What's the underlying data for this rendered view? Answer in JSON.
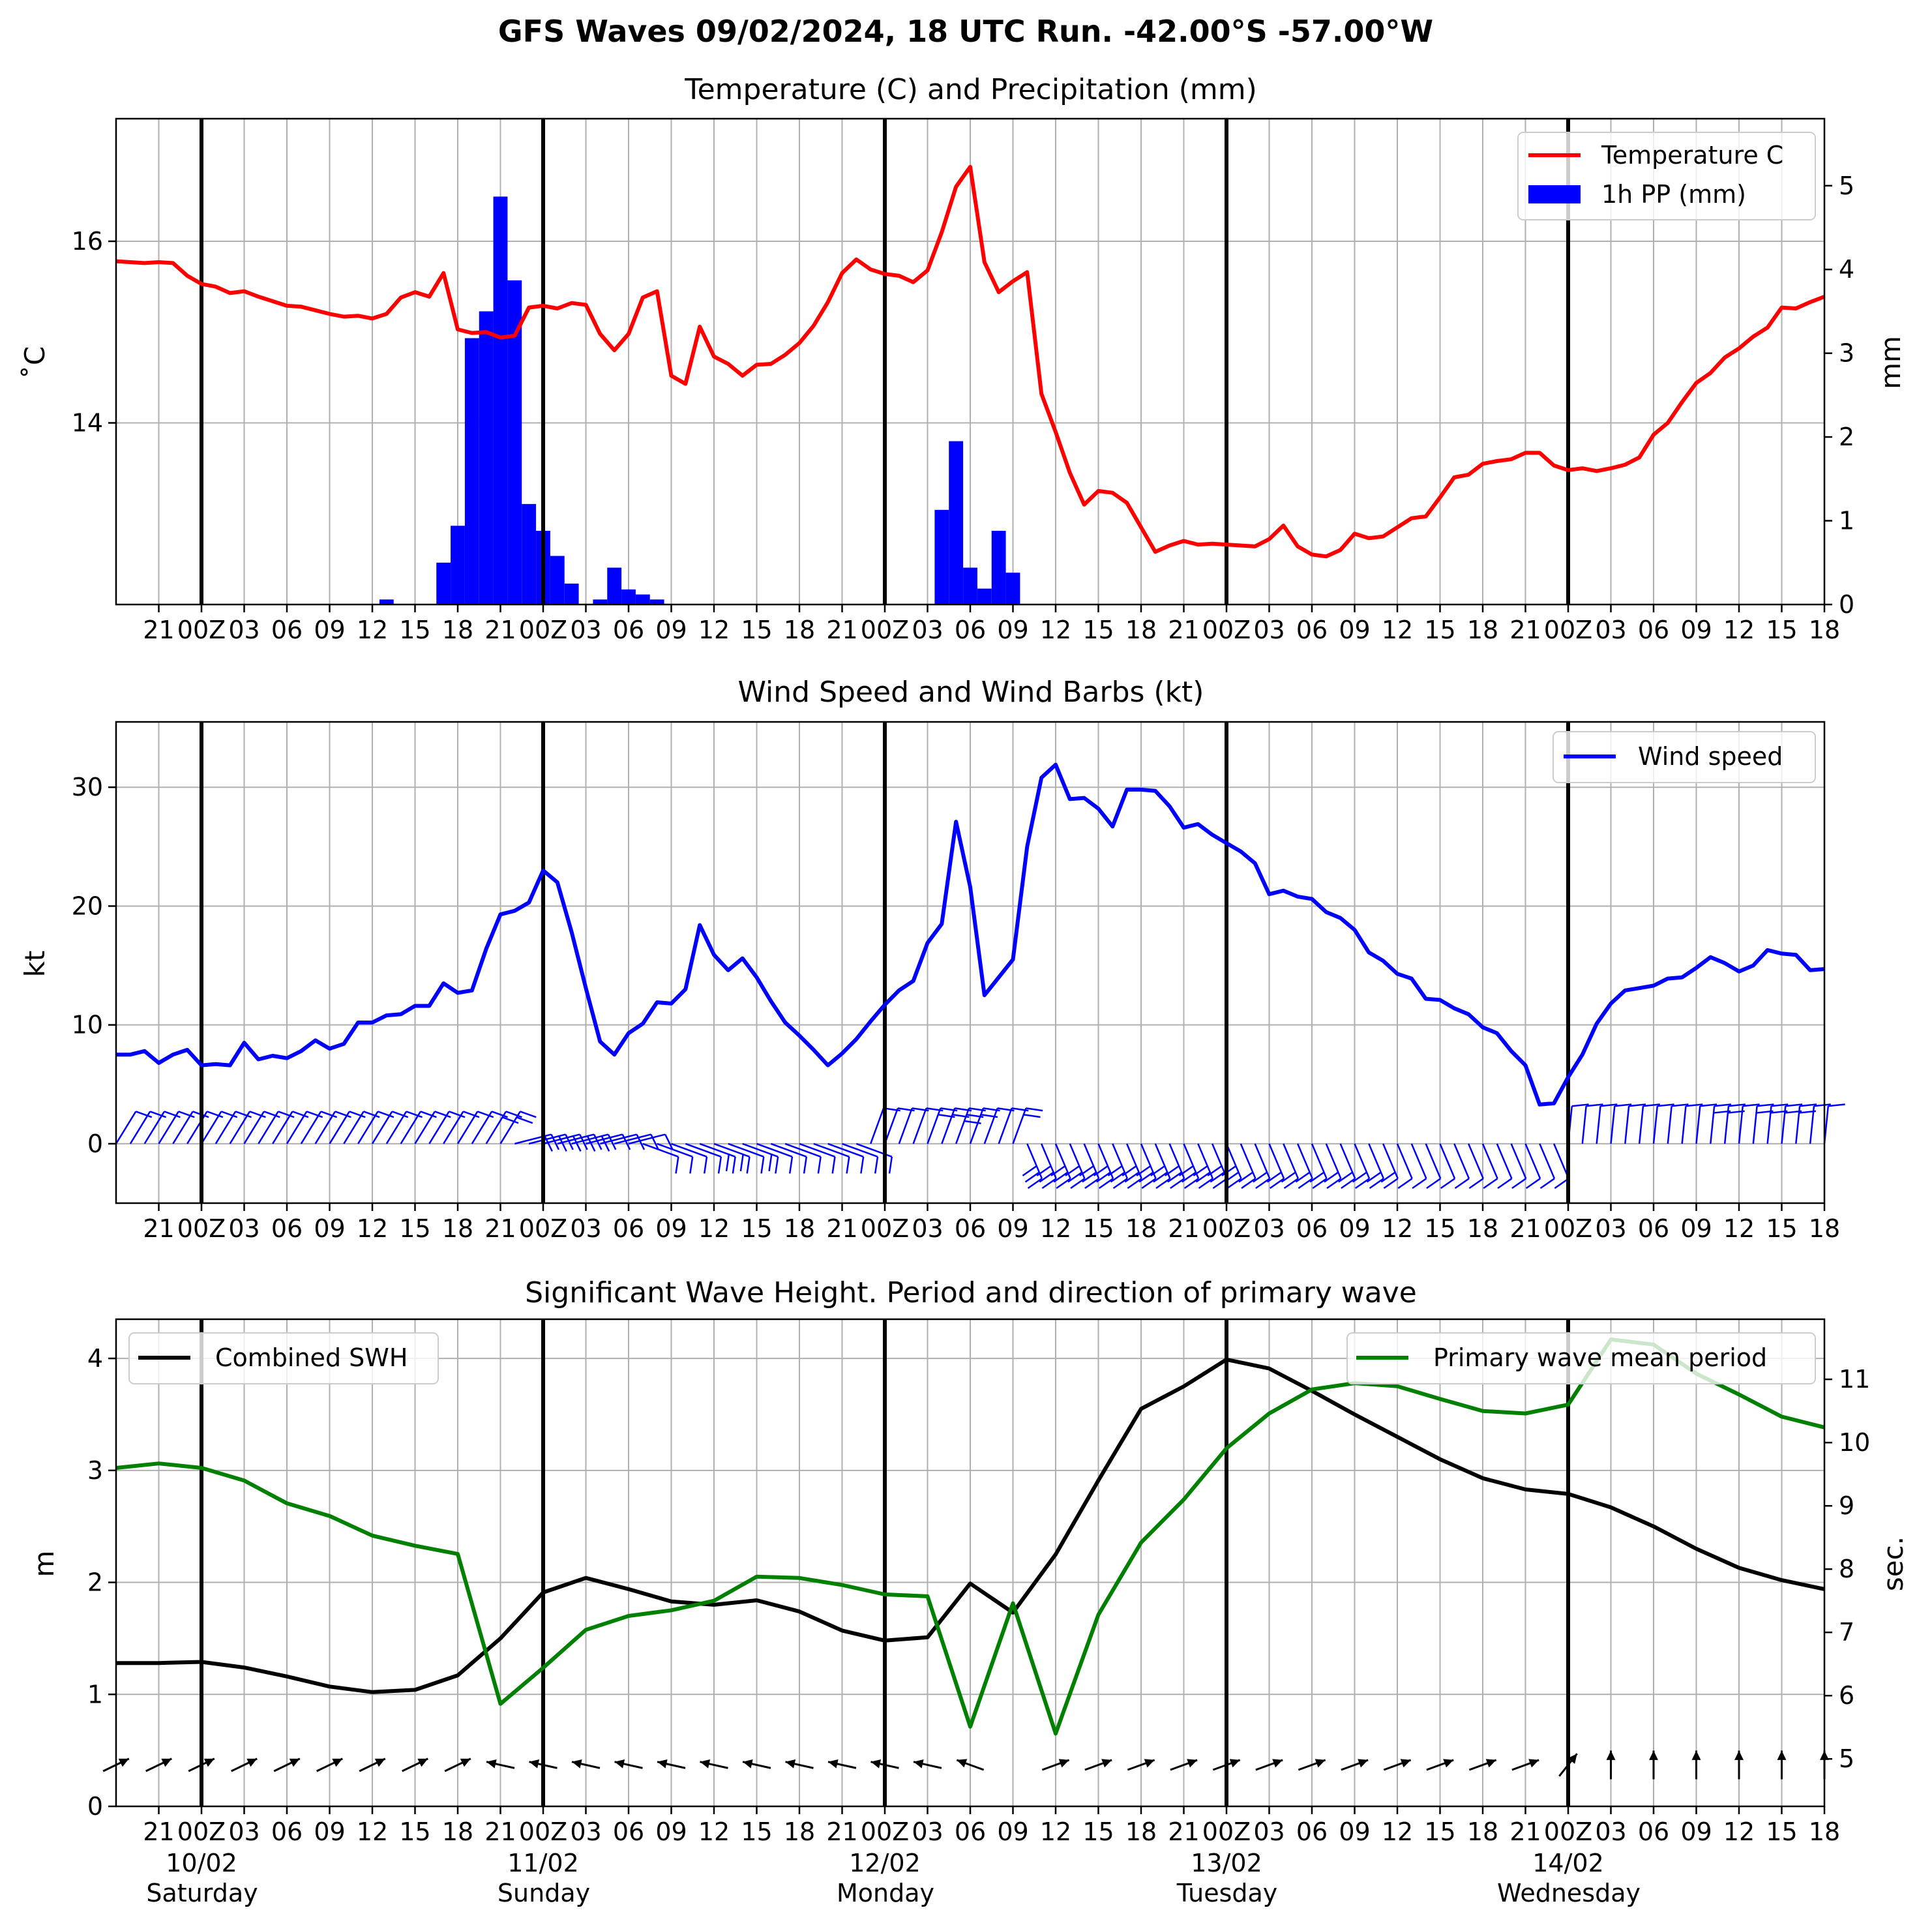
{
  "title": "GFS Waves 09/02/2024, 18 UTC Run. -42.00°S -57.00°W",
  "colors": {
    "temperature": "#ff0000",
    "precip": "#0000ff",
    "wind": "#0000ff",
    "swh": "#000000",
    "period": "#008000",
    "grid": "#b0b0b0"
  },
  "x_axis": {
    "range_hours": [
      0,
      120
    ],
    "ticks": [
      {
        "h": 3,
        "label": "21"
      },
      {
        "h": 6,
        "label": "00Z"
      },
      {
        "h": 9,
        "label": "03"
      },
      {
        "h": 12,
        "label": "06"
      },
      {
        "h": 15,
        "label": "09"
      },
      {
        "h": 18,
        "label": "12"
      },
      {
        "h": 21,
        "label": "15"
      },
      {
        "h": 24,
        "label": "18"
      },
      {
        "h": 27,
        "label": "21"
      },
      {
        "h": 30,
        "label": "00Z"
      },
      {
        "h": 33,
        "label": "03"
      },
      {
        "h": 36,
        "label": "06"
      },
      {
        "h": 39,
        "label": "09"
      },
      {
        "h": 42,
        "label": "12"
      },
      {
        "h": 45,
        "label": "15"
      },
      {
        "h": 48,
        "label": "18"
      },
      {
        "h": 51,
        "label": "21"
      },
      {
        "h": 54,
        "label": "00Z"
      },
      {
        "h": 57,
        "label": "03"
      },
      {
        "h": 60,
        "label": "06"
      },
      {
        "h": 63,
        "label": "09"
      },
      {
        "h": 66,
        "label": "12"
      },
      {
        "h": 69,
        "label": "15"
      },
      {
        "h": 72,
        "label": "18"
      },
      {
        "h": 75,
        "label": "21"
      },
      {
        "h": 78,
        "label": "00Z"
      },
      {
        "h": 81,
        "label": "03"
      },
      {
        "h": 84,
        "label": "06"
      },
      {
        "h": 87,
        "label": "09"
      },
      {
        "h": 90,
        "label": "12"
      },
      {
        "h": 93,
        "label": "15"
      },
      {
        "h": 96,
        "label": "18"
      },
      {
        "h": 99,
        "label": "21"
      },
      {
        "h": 102,
        "label": "00Z"
      },
      {
        "h": 105,
        "label": "03"
      },
      {
        "h": 108,
        "label": "06"
      },
      {
        "h": 111,
        "label": "09"
      },
      {
        "h": 114,
        "label": "12"
      },
      {
        "h": 117,
        "label": "15"
      },
      {
        "h": 120,
        "label": "18"
      }
    ],
    "day_lines": [
      6,
      30,
      54,
      78,
      102
    ],
    "days": [
      {
        "h": 6,
        "date": "10/02",
        "weekday": "Saturday"
      },
      {
        "h": 30,
        "date": "11/02",
        "weekday": "Sunday"
      },
      {
        "h": 54,
        "date": "12/02",
        "weekday": "Monday"
      },
      {
        "h": 78,
        "date": "13/02",
        "weekday": "Tuesday"
      },
      {
        "h": 102,
        "date": "14/02",
        "weekday": "Wednesday"
      }
    ]
  },
  "chart_data": [
    {
      "type": "line",
      "title": "Temperature (C) and Precipitation (mm)",
      "ylabel": "$^\\circ$C",
      "ylabel_display": "˚C",
      "ylim": [
        12.0,
        17.35
      ],
      "yticks": [
        14,
        16
      ],
      "y2label": "mm",
      "y2lim": [
        0,
        5.8
      ],
      "y2ticks": [
        0,
        1,
        2,
        3,
        4,
        5
      ],
      "grid": true,
      "legend": "top-right",
      "series": [
        {
          "name": "Temperature C",
          "axis": "left",
          "x": [
            0,
            1,
            2,
            3,
            4,
            5,
            6,
            7,
            8,
            9,
            10,
            11,
            12,
            13,
            14,
            15,
            16,
            17,
            18,
            19,
            20,
            21,
            22,
            23,
            24,
            25,
            26,
            27,
            28,
            29,
            30,
            31,
            32,
            33,
            34,
            35,
            36,
            37,
            38,
            39,
            40,
            41,
            42,
            43,
            44,
            45,
            46,
            47,
            48,
            49,
            50,
            51,
            52,
            53,
            54,
            55,
            56,
            57,
            58,
            59,
            60,
            61,
            62,
            63,
            64,
            65,
            66,
            67,
            68,
            69,
            70,
            71,
            72,
            73,
            74,
            75,
            76,
            77,
            78,
            79,
            80,
            81,
            82,
            83,
            84,
            85,
            86,
            87,
            88,
            89,
            90,
            91,
            92,
            93,
            94,
            95,
            96,
            97,
            98,
            99,
            100,
            101,
            102,
            103,
            104,
            105,
            106,
            107,
            108,
            109,
            110,
            111,
            112,
            113,
            114,
            115,
            116,
            117,
            118,
            119,
            120
          ],
          "values": [
            15.78,
            15.77,
            15.76,
            15.77,
            15.76,
            15.62,
            15.53,
            15.5,
            15.43,
            15.45,
            15.39,
            15.34,
            15.29,
            15.28,
            15.24,
            15.2,
            15.17,
            15.18,
            15.15,
            15.2,
            15.38,
            15.44,
            15.39,
            15.65,
            15.03,
            14.99,
            15.0,
            14.94,
            14.96,
            15.27,
            15.29,
            15.26,
            15.32,
            15.3,
            14.98,
            14.8,
            14.98,
            15.38,
            15.45,
            14.52,
            14.43,
            15.06,
            14.73,
            14.65,
            14.52,
            14.64,
            14.65,
            14.75,
            14.88,
            15.07,
            15.33,
            15.65,
            15.8,
            15.69,
            15.64,
            15.62,
            15.55,
            15.68,
            16.1,
            16.6,
            16.82,
            15.77,
            15.44,
            15.56,
            15.66,
            14.32,
            13.9,
            13.45,
            13.1,
            13.25,
            13.23,
            13.12,
            12.85,
            12.58,
            12.65,
            12.7,
            12.66,
            12.67,
            12.66,
            12.65,
            12.64,
            12.72,
            12.87,
            12.64,
            12.55,
            12.53,
            12.6,
            12.78,
            12.73,
            12.75,
            12.85,
            12.95,
            12.97,
            13.18,
            13.4,
            13.43,
            13.55,
            13.58,
            13.6,
            13.67,
            13.67,
            13.53,
            13.48,
            13.5,
            13.47,
            13.5,
            13.54,
            13.62,
            13.87,
            14.0,
            14.23,
            14.44,
            14.55,
            14.72,
            14.82,
            14.95,
            15.05,
            15.27,
            15.26,
            15.33,
            15.39
          ]
        },
        {
          "name": "1h PP (mm)",
          "axis": "right",
          "kind": "bar",
          "x": [
            19,
            23,
            24,
            25,
            26,
            27,
            28,
            29,
            30,
            31,
            32,
            34,
            35,
            36,
            37,
            38,
            58,
            59,
            60,
            61,
            62,
            63
          ],
          "values": [
            0.06,
            0.5,
            0.94,
            3.18,
            3.5,
            4.87,
            3.87,
            1.2,
            0.88,
            0.58,
            0.25,
            0.06,
            0.44,
            0.18,
            0.12,
            0.06,
            1.13,
            1.95,
            0.44,
            0.19,
            0.88,
            0.38
          ]
        }
      ]
    },
    {
      "type": "line",
      "title": "Wind Speed and Wind Barbs (kt)",
      "ylabel": "kt",
      "ylim": [
        -5,
        35.5
      ],
      "yticks": [
        0,
        10,
        20,
        30
      ],
      "grid": true,
      "legend": "top-right",
      "series": [
        {
          "name": "Wind speed",
          "x": [
            0,
            1,
            2,
            3,
            4,
            5,
            6,
            7,
            8,
            9,
            10,
            11,
            12,
            13,
            14,
            15,
            16,
            17,
            18,
            19,
            20,
            21,
            22,
            23,
            24,
            25,
            26,
            27,
            28,
            29,
            30,
            31,
            32,
            33,
            34,
            35,
            36,
            37,
            38,
            39,
            40,
            41,
            42,
            43,
            44,
            45,
            46,
            47,
            48,
            49,
            50,
            51,
            52,
            53,
            54,
            55,
            56,
            57,
            58,
            59,
            60,
            61,
            62,
            63,
            64,
            65,
            66,
            67,
            68,
            69,
            70,
            71,
            72,
            73,
            74,
            75,
            76,
            77,
            78,
            79,
            80,
            81,
            82,
            83,
            84,
            85,
            86,
            87,
            88,
            89,
            90,
            91,
            92,
            93,
            94,
            95,
            96,
            97,
            98,
            99,
            100,
            101,
            102,
            103,
            104,
            105,
            106,
            107,
            108,
            109,
            110,
            111,
            112,
            113,
            114,
            115,
            116,
            117,
            118,
            119,
            120
          ],
          "values": [
            7.5,
            7.5,
            7.8,
            6.8,
            7.5,
            7.9,
            6.6,
            6.7,
            6.6,
            8.5,
            7.1,
            7.4,
            7.2,
            7.8,
            8.7,
            8.0,
            8.4,
            10.2,
            10.2,
            10.8,
            10.9,
            11.6,
            11.6,
            13.5,
            12.7,
            12.9,
            16.4,
            19.3,
            19.6,
            20.3,
            23.0,
            22.0,
            17.8,
            13.1,
            8.6,
            7.5,
            9.3,
            10.1,
            11.9,
            11.8,
            13.0,
            18.4,
            15.9,
            14.6,
            15.6,
            14.0,
            12.0,
            10.2,
            9.1,
            7.9,
            6.6,
            7.6,
            8.8,
            10.3,
            11.7,
            12.9,
            13.7,
            16.9,
            18.5,
            27.1,
            21.6,
            12.5,
            14.0,
            15.5,
            25.0,
            30.8,
            31.9,
            29.0,
            29.1,
            28.2,
            26.7,
            29.8,
            29.8,
            29.7,
            28.4,
            26.6,
            26.9,
            26.0,
            25.3,
            24.6,
            23.6,
            21.0,
            21.3,
            20.8,
            20.6,
            19.5,
            19.0,
            18.0,
            16.1,
            15.4,
            14.3,
            13.9,
            12.2,
            12.1,
            11.4,
            10.9,
            9.8,
            9.3,
            7.8,
            6.6,
            3.3,
            3.4,
            5.6,
            7.5,
            10.1,
            11.8,
            12.9,
            13.1,
            13.3,
            13.9,
            14.0,
            14.8,
            15.7,
            15.2,
            14.5,
            15.0,
            16.3,
            16.0,
            15.9,
            14.6,
            14.7
          ]
        }
      ],
      "barbs_description": "wind barbs plotted along zero line at each model hour"
    },
    {
      "type": "line",
      "title": "Significant Wave Height. Period and direction of primary wave",
      "ylabel": "m",
      "ylim": [
        0,
        4.35
      ],
      "yticks": [
        0,
        1,
        2,
        3,
        4
      ],
      "y2label": "sec.",
      "y2lim": [
        4.25,
        11.95
      ],
      "y2ticks": [
        5,
        6,
        7,
        8,
        9,
        10,
        11
      ],
      "grid": true,
      "series": [
        {
          "name": "Combined SWH",
          "axis": "left",
          "legend": "top-left",
          "x": [
            0,
            3,
            6,
            9,
            12,
            15,
            18,
            21,
            24,
            27,
            30,
            33,
            36,
            39,
            42,
            45,
            48,
            51,
            54,
            57,
            60,
            63,
            66,
            69,
            72,
            75,
            78,
            81,
            84,
            87,
            90,
            93,
            96,
            99,
            102,
            105,
            108,
            111,
            114,
            117,
            120
          ],
          "values": [
            1.28,
            1.28,
            1.29,
            1.24,
            1.16,
            1.07,
            1.02,
            1.04,
            1.17,
            1.5,
            1.91,
            2.04,
            1.94,
            1.83,
            1.8,
            1.84,
            1.74,
            1.57,
            1.48,
            1.51,
            1.99,
            1.73,
            2.25,
            2.91,
            3.55,
            3.75,
            3.99,
            3.91,
            3.71,
            3.5,
            3.3,
            3.1,
            2.93,
            2.83,
            2.79,
            2.67,
            2.5,
            2.3,
            2.13,
            2.02,
            1.94
          ]
        },
        {
          "name": "Primary wave mean period",
          "axis": "right",
          "legend": "top-right",
          "x": [
            0,
            3,
            6,
            9,
            12,
            15,
            18,
            21,
            24,
            27,
            30,
            33,
            36,
            39,
            42,
            45,
            48,
            51,
            54,
            57,
            60,
            63,
            66,
            69,
            72,
            75,
            78,
            81,
            84,
            87,
            90,
            93,
            96,
            99,
            102,
            105,
            108,
            111,
            114,
            117,
            120
          ],
          "values": [
            9.6,
            9.67,
            9.6,
            9.4,
            9.04,
            8.84,
            8.53,
            8.37,
            8.24,
            5.87,
            6.44,
            7.04,
            7.26,
            7.35,
            7.5,
            7.88,
            7.86,
            7.75,
            7.6,
            7.57,
            5.51,
            7.46,
            5.4,
            7.28,
            8.42,
            9.1,
            9.91,
            10.46,
            10.84,
            10.94,
            10.89,
            10.69,
            10.5,
            10.46,
            10.6,
            11.63,
            11.55,
            11.09,
            10.76,
            10.41,
            10.24
          ]
        }
      ],
      "wave_arrows_description": "primary wave direction arrows at each 3-hour step"
    }
  ]
}
